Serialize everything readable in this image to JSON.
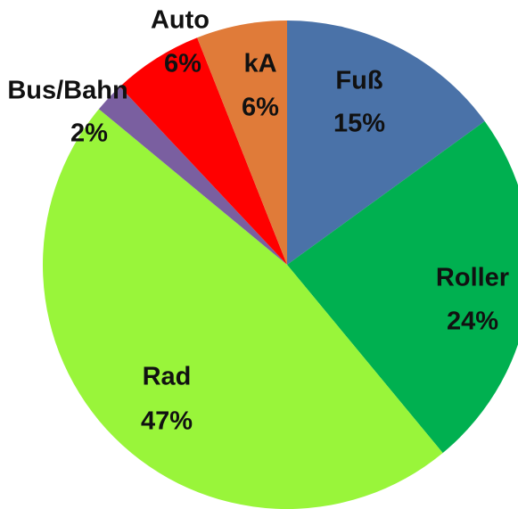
{
  "chart_data": {
    "type": "pie",
    "categories": [
      "Fuß",
      "Roller",
      "Rad",
      "Bus/Bahn",
      "Auto",
      "kA"
    ],
    "values": [
      15,
      24,
      47,
      2,
      6,
      6
    ],
    "value_labels": [
      "15%",
      "24%",
      "47%",
      "2%",
      "6%",
      "6%"
    ],
    "colors": [
      "#4a72a8",
      "#00b050",
      "#99f53a",
      "#7a5fa0",
      "#ff0000",
      "#e07b39"
    ]
  }
}
